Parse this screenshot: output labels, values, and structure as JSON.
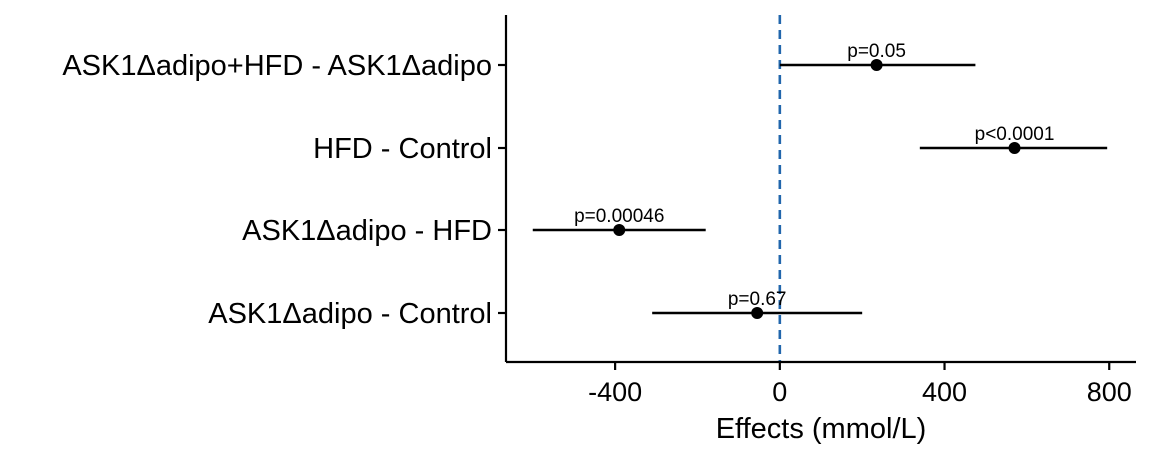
{
  "chart_data": {
    "type": "forest",
    "xlabel": "Effects (mmol/L)",
    "xlim": [
      -665,
      865
    ],
    "xticks": [
      {
        "value": -400,
        "label": "-400"
      },
      {
        "value": 0,
        "label": "0"
      },
      {
        "value": 400,
        "label": "400"
      },
      {
        "value": 800,
        "label": "800"
      }
    ],
    "reference_line": {
      "value": 0,
      "style": "dashed",
      "color": "#2166ac"
    },
    "grid": false,
    "rows": [
      {
        "label": "ASK1Δadipo+HFD - ASK1Δadipo",
        "estimate": 235,
        "lower": 0,
        "upper": 475,
        "p_label": "p=0.05"
      },
      {
        "label": "HFD - Control",
        "estimate": 570,
        "lower": 340,
        "upper": 795,
        "p_label": "p<0.0001"
      },
      {
        "label": "ASK1Δadipo - HFD",
        "estimate": -390,
        "lower": -600,
        "upper": -180,
        "p_label": "p=0.00046"
      },
      {
        "label": "ASK1Δadipo - Control",
        "estimate": -55,
        "lower": -310,
        "upper": 200,
        "p_label": "p=0.67"
      }
    ],
    "colors": {
      "points": "#000000",
      "interval": "#000000",
      "axis": "#000000"
    }
  }
}
